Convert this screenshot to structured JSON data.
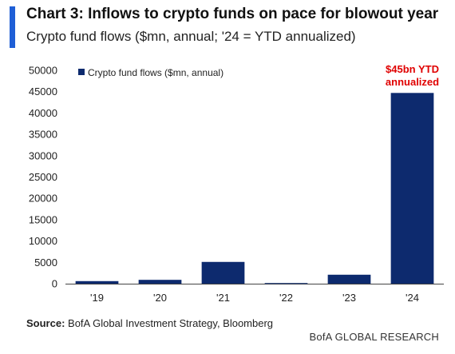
{
  "header": {
    "title": "Chart 3: Inflows to crypto funds on pace for blowout year",
    "subtitle": "Crypto fund flows ($mn, annual; '24 = YTD annualized)"
  },
  "footer": {
    "source_label": "Source:",
    "source_text": "BofA Global Investment Strategy, Bloomberg",
    "brand": "BofA GLOBAL RESEARCH"
  },
  "colors": {
    "accent": "#1f5fd6",
    "bar": "#0d2a6e",
    "annotation": "#e00000"
  },
  "chart_data": {
    "type": "bar",
    "title": "",
    "xlabel": "",
    "ylabel": "",
    "categories": [
      "'19",
      "'20",
      "'21",
      "'22",
      "'23",
      "'24"
    ],
    "series": [
      {
        "name": "Crypto fund flows ($mn, annual)",
        "values": [
          600,
          900,
          5100,
          150,
          2100,
          44700
        ]
      }
    ],
    "ylim": [
      0,
      50000
    ],
    "yticks": [
      0,
      5000,
      10000,
      15000,
      20000,
      25000,
      30000,
      35000,
      40000,
      45000,
      50000
    ],
    "grid": false,
    "legend": {
      "position": "top-left"
    },
    "annotations": [
      {
        "category": "'24",
        "lines": [
          "$45bn YTD",
          "annualized"
        ]
      }
    ]
  }
}
